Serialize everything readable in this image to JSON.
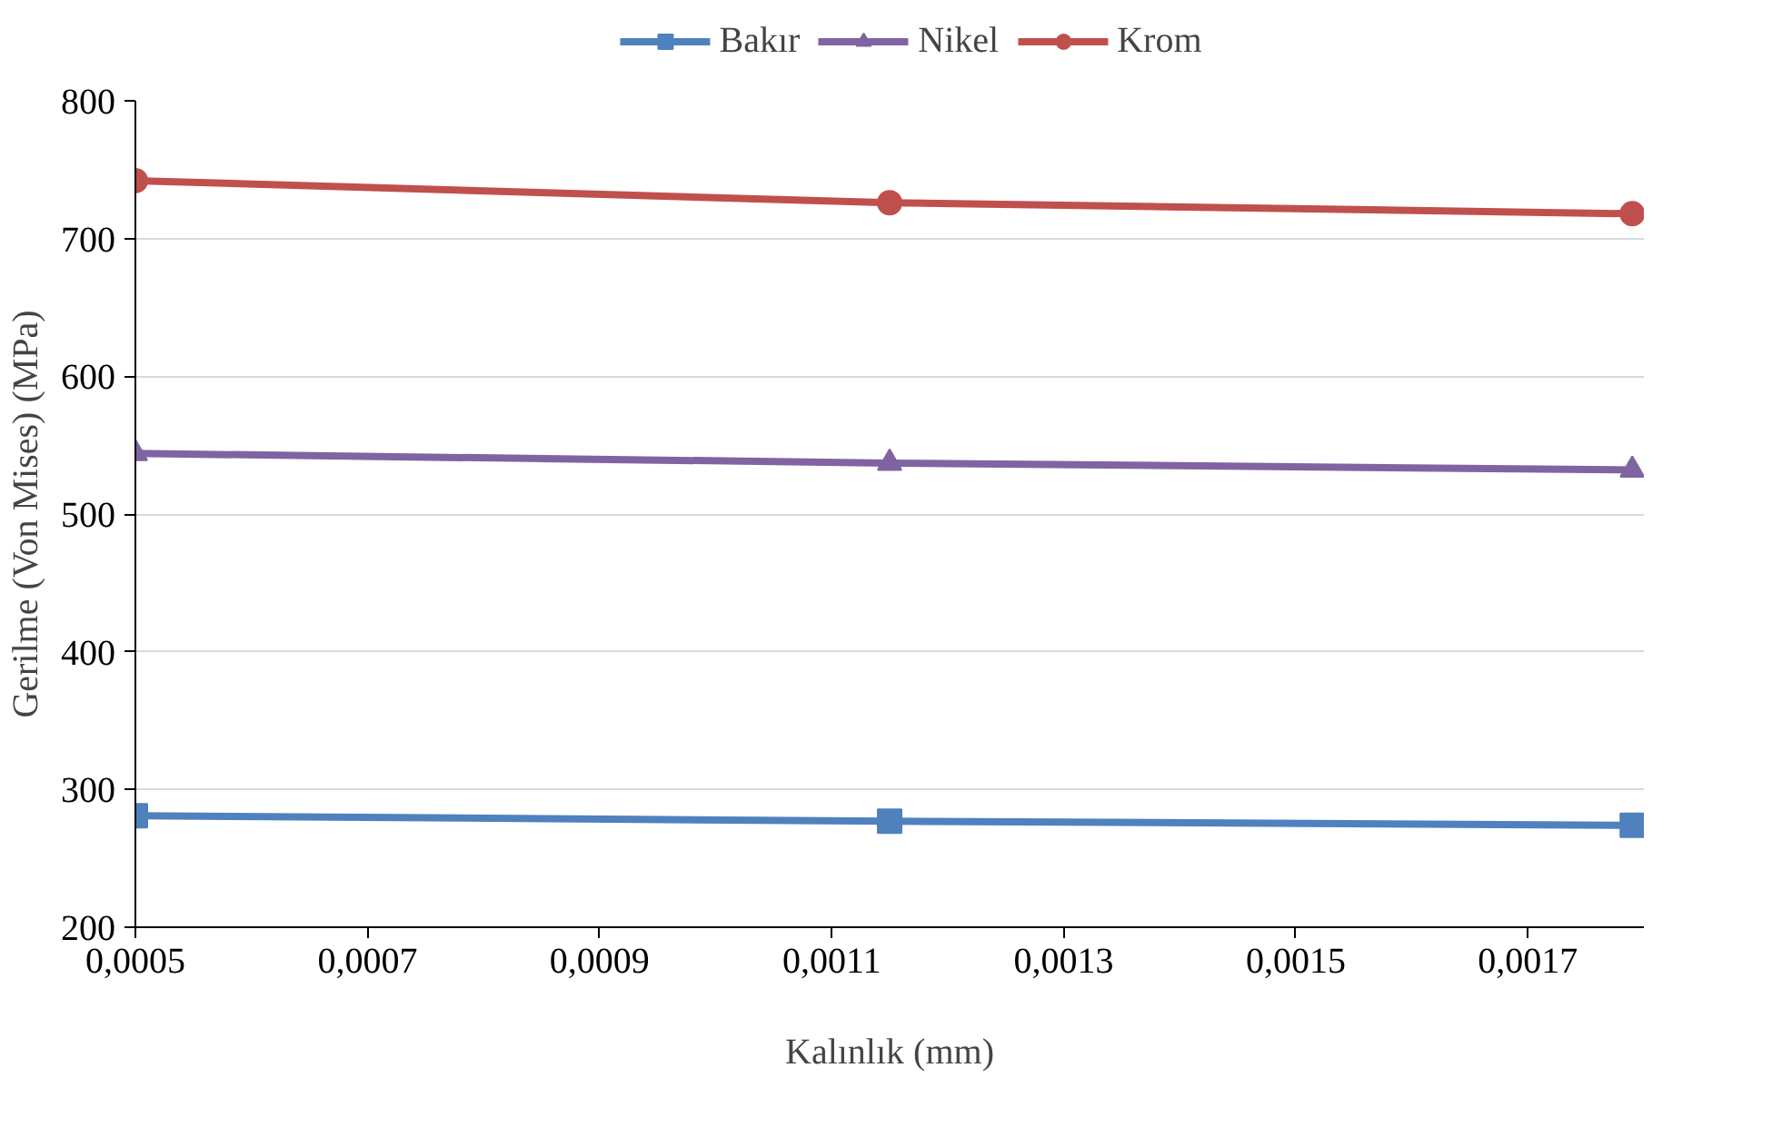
{
  "chart_data": {
    "type": "line",
    "xlabel": "Kalınlık (mm)",
    "ylabel": "Gerilme (Von Mises) (MPa)",
    "x": [
      0.0005,
      0.00115,
      0.00179
    ],
    "series": [
      {
        "name": "Bakır",
        "color": "#4f81bd",
        "values": [
          281,
          277,
          274
        ],
        "marker": "square"
      },
      {
        "name": "Nikel",
        "color": "#8064a2",
        "values": [
          544,
          537,
          532
        ],
        "marker": "triangle"
      },
      {
        "name": "Krom",
        "color": "#c0504d",
        "values": [
          742,
          726,
          718
        ],
        "marker": "circle"
      }
    ],
    "xlim": [
      0.0005,
      0.0018
    ],
    "xticks": [
      {
        "value": 0.0005,
        "label": "0,0005"
      },
      {
        "value": 0.0007,
        "label": "0,0007"
      },
      {
        "value": 0.0009,
        "label": "0,0009"
      },
      {
        "value": 0.0011,
        "label": "0,0011"
      },
      {
        "value": 0.0013,
        "label": "0,0013"
      },
      {
        "value": 0.0015,
        "label": "0,0015"
      },
      {
        "value": 0.0017,
        "label": "0,0017"
      }
    ],
    "ylim": [
      200,
      800
    ],
    "yticks": [
      200,
      300,
      400,
      500,
      600,
      700,
      800
    ],
    "grid": "y",
    "legend": "top",
    "line_style": "solid"
  }
}
